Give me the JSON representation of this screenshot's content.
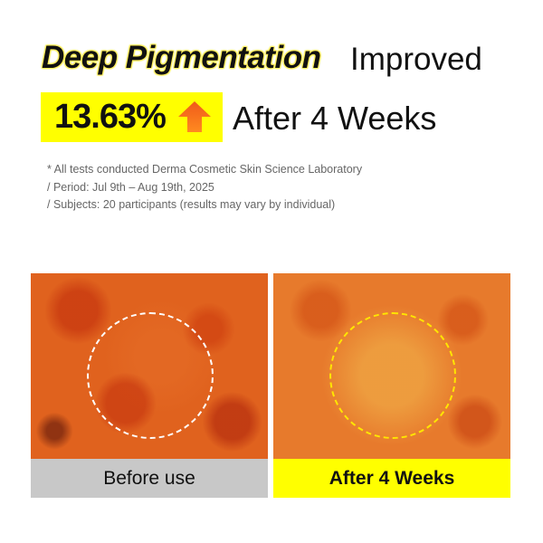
{
  "headline": {
    "highlight": "Deep Pigmentation",
    "rest": "Improved",
    "percent": "13.63%",
    "arrow_icon": "arrow-up-icon",
    "period": "After 4 Weeks"
  },
  "notes": [
    "* All tests conducted Derma Cosmetic Skin Science Laboratory",
    "/ Period: Jul 9th – Aug 19th, 2025",
    "/ Subjects: 20 participants (results may vary by individual)"
  ],
  "comparison": {
    "before_label": "Before use",
    "after_label": "After 4 Weeks"
  },
  "colors": {
    "highlight": "#ffff00",
    "arrow": "#f26a1b",
    "before_label_bg": "#c8c8c8",
    "after_circle": "#ffe600"
  }
}
